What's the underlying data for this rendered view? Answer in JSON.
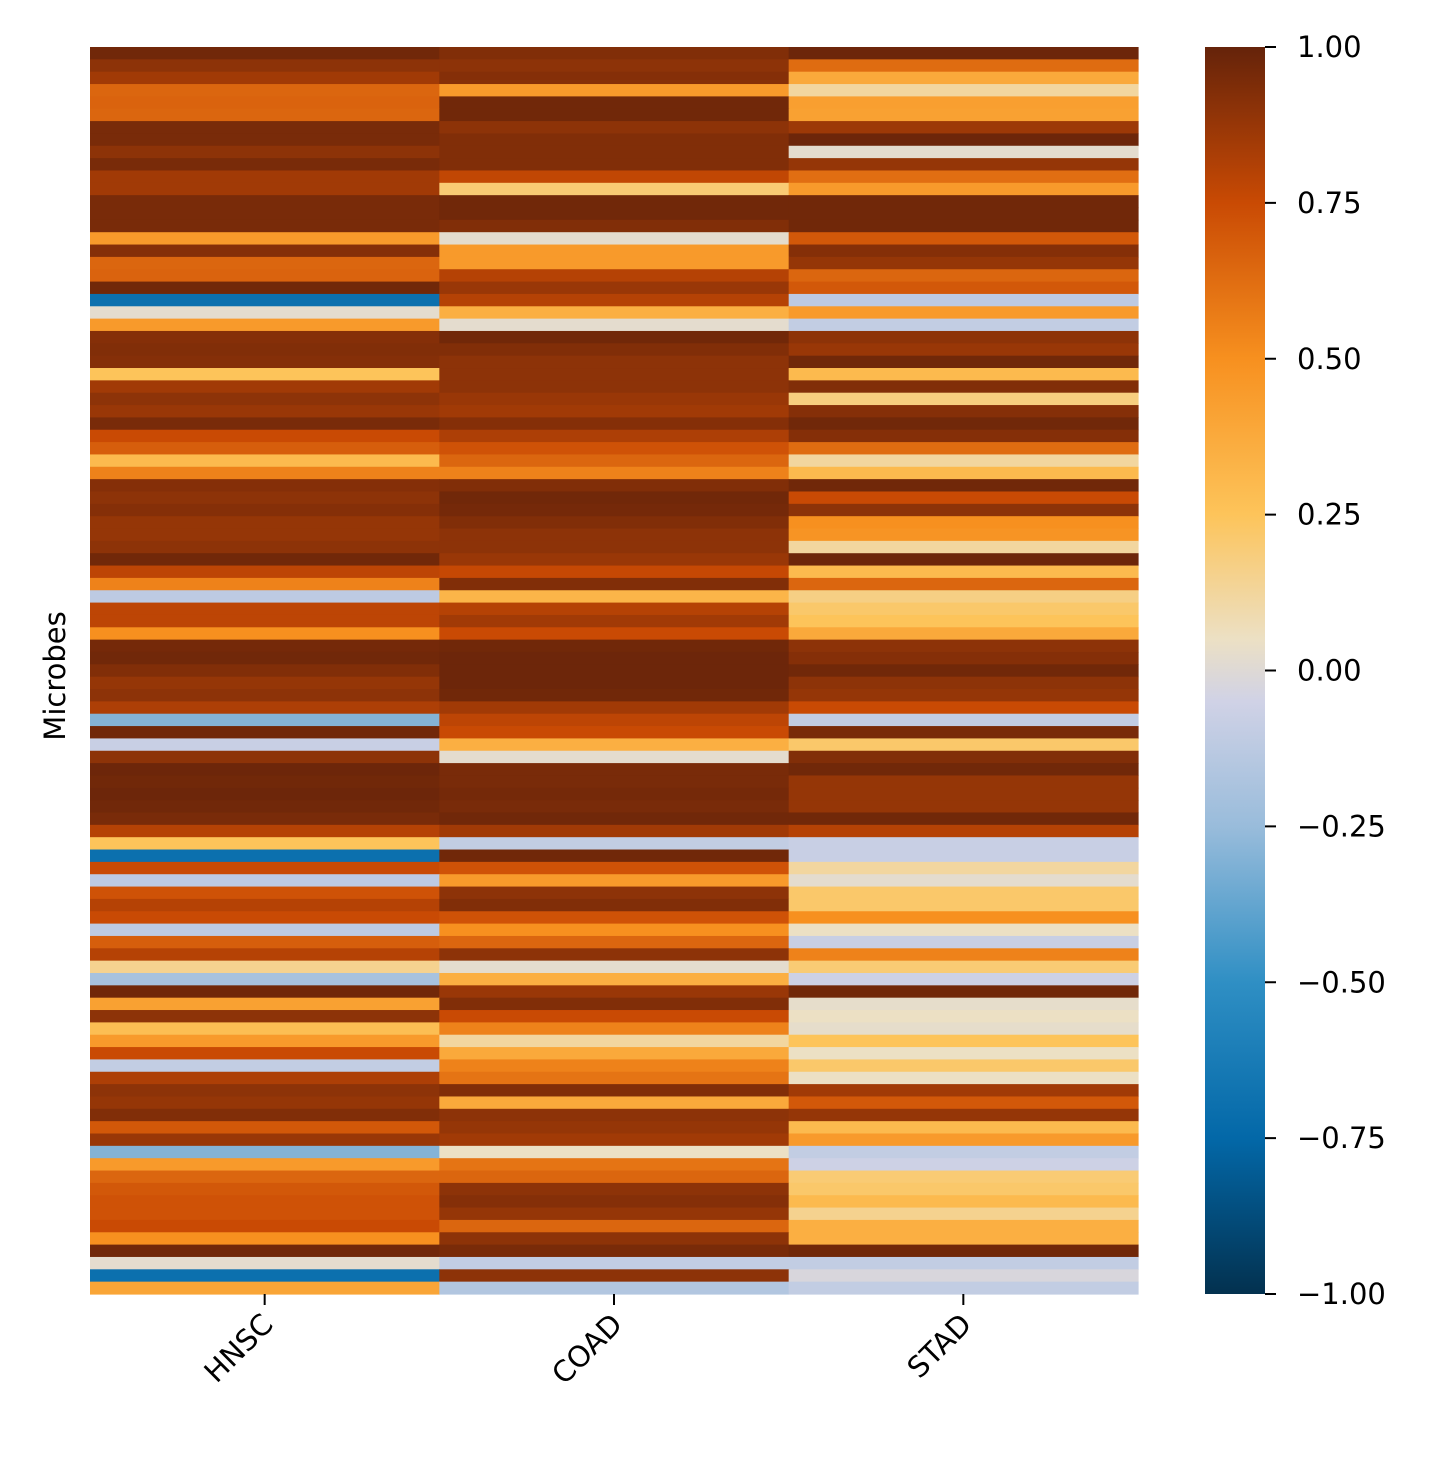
{
  "chart_data": {
    "type": "heatmap",
    "title": "",
    "xlabel": "",
    "ylabel": "Microbes",
    "columns": [
      "HNSC",
      "COAD",
      "STAD"
    ],
    "value_range": [
      -1.0,
      1.0
    ],
    "colorbar": {
      "ticks": [
        1.0,
        0.75,
        0.5,
        0.25,
        0.0,
        -0.25,
        -0.5,
        -0.75,
        -1.0
      ],
      "tick_labels": [
        "1.00",
        "0.75",
        "0.50",
        "0.25",
        "0.00",
        "−0.25",
        "−0.50",
        "−0.75",
        "−1.00"
      ],
      "stops": [
        {
          "v": -1.0,
          "color": "#03314f"
        },
        {
          "v": -0.75,
          "color": "#0368a8"
        },
        {
          "v": -0.5,
          "color": "#2f8fc4"
        },
        {
          "v": -0.25,
          "color": "#99bcdb"
        },
        {
          "v": -0.05,
          "color": "#d0d2e6"
        },
        {
          "v": 0.05,
          "color": "#ece0c4"
        },
        {
          "v": 0.25,
          "color": "#fdc45a"
        },
        {
          "v": 0.5,
          "color": "#f7901f"
        },
        {
          "v": 0.75,
          "color": "#c94a04"
        },
        {
          "v": 1.0,
          "color": "#65230a"
        }
      ]
    },
    "grid": false,
    "legend": "colorbar-right",
    "rows": [
      [
        0.97,
        0.93,
        0.98
      ],
      [
        0.9,
        0.9,
        0.63
      ],
      [
        0.85,
        0.92,
        0.38
      ],
      [
        0.65,
        0.45,
        0.12
      ],
      [
        0.66,
        0.97,
        0.43
      ],
      [
        0.65,
        0.97,
        0.42
      ],
      [
        0.95,
        0.9,
        0.86
      ],
      [
        0.95,
        0.93,
        0.98
      ],
      [
        0.9,
        0.93,
        0.02
      ],
      [
        0.95,
        0.93,
        0.88
      ],
      [
        0.85,
        0.77,
        0.62
      ],
      [
        0.85,
        0.2,
        0.45
      ],
      [
        0.95,
        0.97,
        0.97
      ],
      [
        0.95,
        0.97,
        0.97
      ],
      [
        0.95,
        0.93,
        0.97
      ],
      [
        0.45,
        0.02,
        0.7
      ],
      [
        0.92,
        0.45,
        0.92
      ],
      [
        0.65,
        0.45,
        0.88
      ],
      [
        0.66,
        0.8,
        0.65
      ],
      [
        0.97,
        0.87,
        0.7
      ],
      [
        -0.7,
        0.8,
        -0.12
      ],
      [
        0.02,
        0.35,
        0.45
      ],
      [
        0.45,
        0.02,
        -0.1
      ],
      [
        0.92,
        0.97,
        0.9
      ],
      [
        0.93,
        0.93,
        0.87
      ],
      [
        0.92,
        0.9,
        0.97
      ],
      [
        0.25,
        0.9,
        0.3
      ],
      [
        0.85,
        0.9,
        0.93
      ],
      [
        0.9,
        0.87,
        0.18
      ],
      [
        0.87,
        0.85,
        0.92
      ],
      [
        0.95,
        0.92,
        0.97
      ],
      [
        0.75,
        0.82,
        0.92
      ],
      [
        0.68,
        0.72,
        0.63
      ],
      [
        0.3,
        0.65,
        0.12
      ],
      [
        0.55,
        0.55,
        0.3
      ],
      [
        0.92,
        0.93,
        0.97
      ],
      [
        0.9,
        0.97,
        0.75
      ],
      [
        0.92,
        0.96,
        0.9
      ],
      [
        0.88,
        0.93,
        0.5
      ],
      [
        0.88,
        0.9,
        0.48
      ],
      [
        0.9,
        0.9,
        0.12
      ],
      [
        0.97,
        0.87,
        0.98
      ],
      [
        0.78,
        0.76,
        0.3
      ],
      [
        0.55,
        0.93,
        0.65
      ],
      [
        -0.12,
        0.32,
        0.17
      ],
      [
        0.78,
        0.8,
        0.22
      ],
      [
        0.78,
        0.85,
        0.25
      ],
      [
        0.5,
        0.75,
        0.38
      ],
      [
        0.96,
        0.97,
        0.9
      ],
      [
        0.97,
        0.98,
        0.92
      ],
      [
        0.93,
        0.98,
        0.97
      ],
      [
        0.88,
        0.98,
        0.9
      ],
      [
        0.9,
        0.97,
        0.88
      ],
      [
        0.82,
        0.85,
        0.75
      ],
      [
        -0.3,
        0.78,
        -0.1
      ],
      [
        0.97,
        0.75,
        0.95
      ],
      [
        -0.08,
        0.35,
        0.22
      ],
      [
        0.9,
        0.02,
        0.93
      ],
      [
        0.98,
        0.95,
        0.97
      ],
      [
        0.97,
        0.95,
        0.88
      ],
      [
        0.98,
        0.96,
        0.88
      ],
      [
        0.97,
        0.95,
        0.88
      ],
      [
        0.95,
        0.97,
        0.97
      ],
      [
        0.8,
        0.85,
        0.8
      ],
      [
        0.25,
        -0.1,
        -0.08
      ],
      [
        -0.7,
        0.97,
        -0.08
      ],
      [
        0.75,
        0.72,
        0.12
      ],
      [
        -0.12,
        0.45,
        0.02
      ],
      [
        0.72,
        0.9,
        0.22
      ],
      [
        0.8,
        0.93,
        0.22
      ],
      [
        0.75,
        0.72,
        0.5
      ],
      [
        -0.12,
        0.5,
        0.05
      ],
      [
        0.68,
        0.65,
        -0.08
      ],
      [
        0.8,
        0.9,
        0.55
      ],
      [
        0.15,
        0.02,
        0.2
      ],
      [
        -0.2,
        0.35,
        -0.06
      ],
      [
        0.97,
        0.87,
        0.97
      ],
      [
        0.42,
        0.93,
        0.03
      ],
      [
        0.9,
        0.75,
        0.05
      ],
      [
        0.28,
        0.55,
        0.03
      ],
      [
        0.45,
        0.12,
        0.25
      ],
      [
        0.75,
        0.38,
        0.05
      ],
      [
        -0.1,
        0.55,
        0.22
      ],
      [
        0.82,
        0.6,
        0.05
      ],
      [
        0.9,
        0.93,
        0.85
      ],
      [
        0.88,
        0.38,
        0.7
      ],
      [
        0.93,
        0.9,
        0.88
      ],
      [
        0.7,
        0.88,
        0.3
      ],
      [
        0.87,
        0.85,
        0.45
      ],
      [
        -0.3,
        0.05,
        -0.1
      ],
      [
        0.45,
        0.6,
        -0.06
      ],
      [
        0.65,
        0.65,
        0.2
      ],
      [
        0.7,
        0.9,
        0.22
      ],
      [
        0.72,
        0.92,
        0.3
      ],
      [
        0.72,
        0.88,
        0.15
      ],
      [
        0.75,
        0.65,
        0.35
      ],
      [
        0.5,
        0.9,
        0.35
      ],
      [
        0.97,
        0.95,
        0.97
      ],
      [
        0.02,
        -0.1,
        -0.1
      ],
      [
        -0.7,
        0.9,
        -0.02
      ],
      [
        0.4,
        -0.16,
        -0.1
      ]
    ]
  }
}
